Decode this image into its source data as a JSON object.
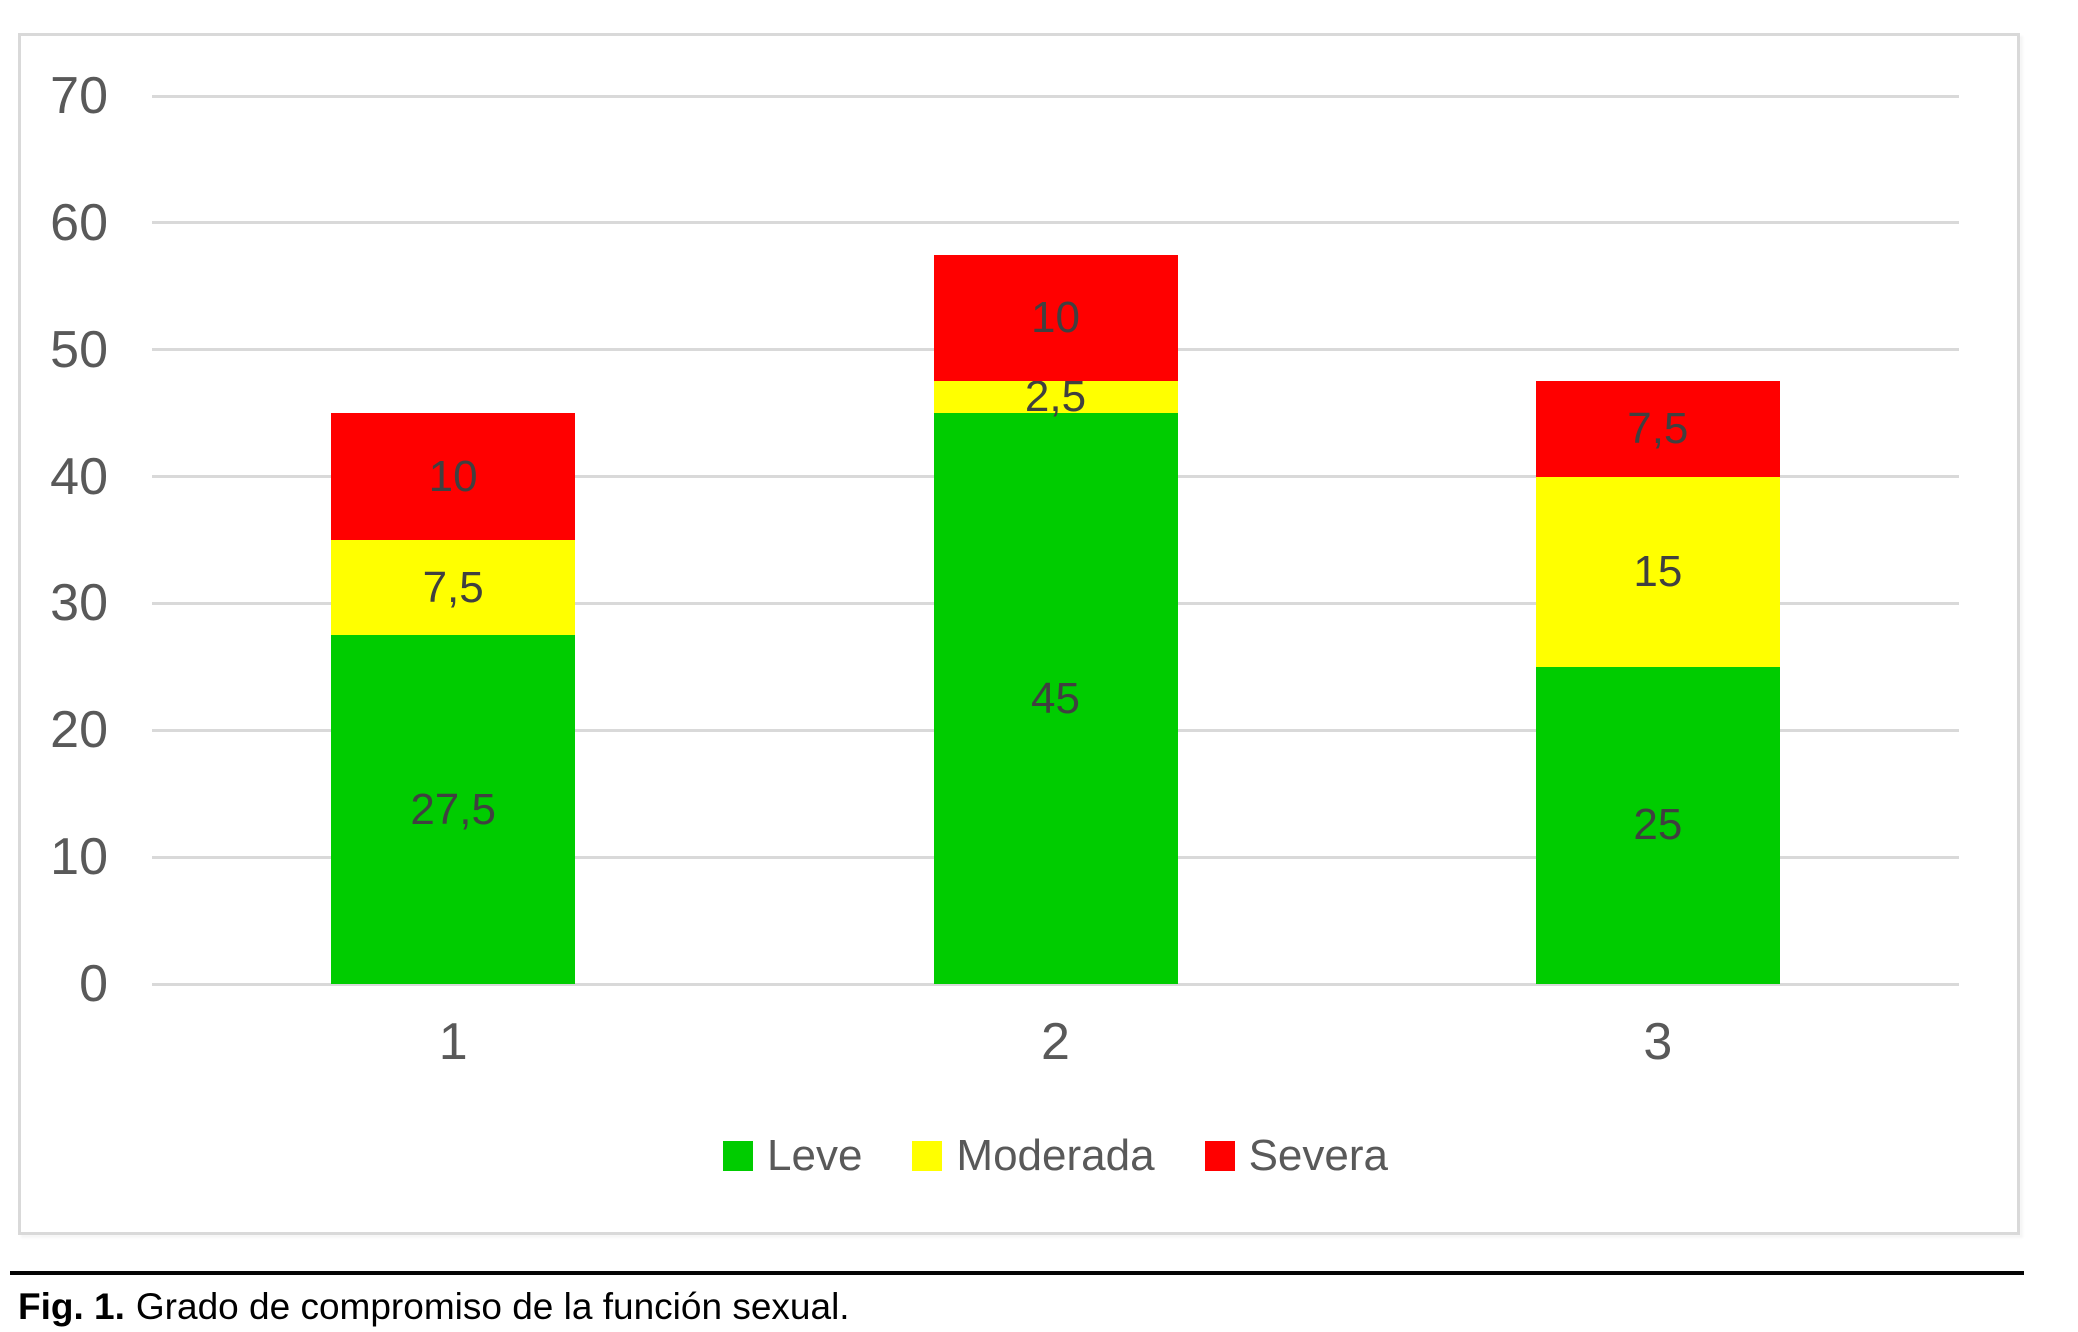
{
  "figure": {
    "caption_prefix": "Fig. 1.",
    "caption_text": "Grado de compromiso de la función sexual."
  },
  "chart_data": {
    "type": "bar",
    "stacked": true,
    "title": "",
    "xlabel": "",
    "ylabel": "",
    "categories": [
      "1",
      "2",
      "3"
    ],
    "series": [
      {
        "name": "Leve",
        "color": "#00CC00",
        "values": [
          27.5,
          45,
          25
        ],
        "labels": [
          "27,5",
          "45",
          "25"
        ]
      },
      {
        "name": "Moderada",
        "color": "#FFFF00",
        "values": [
          7.5,
          2.5,
          15
        ],
        "labels": [
          "7,5",
          "2,5",
          "15"
        ]
      },
      {
        "name": "Severa",
        "color": "#FF0000",
        "values": [
          10,
          10,
          7.5
        ],
        "labels": [
          "10",
          "10",
          "7,5"
        ]
      }
    ],
    "totals": [
      45,
      57.5,
      47.5
    ],
    "ylim": [
      0,
      70
    ],
    "ytick_step": 10,
    "ytick_labels": [
      "0",
      "10",
      "20",
      "30",
      "40",
      "50",
      "60",
      "70"
    ],
    "grid": true,
    "legend_position": "bottom",
    "colors": {
      "gridline": "#d9d9d9",
      "plot_border": "#d9d9d9",
      "axis_text": "#595959",
      "data_label": "#404040",
      "legend_text": "#595959"
    }
  }
}
